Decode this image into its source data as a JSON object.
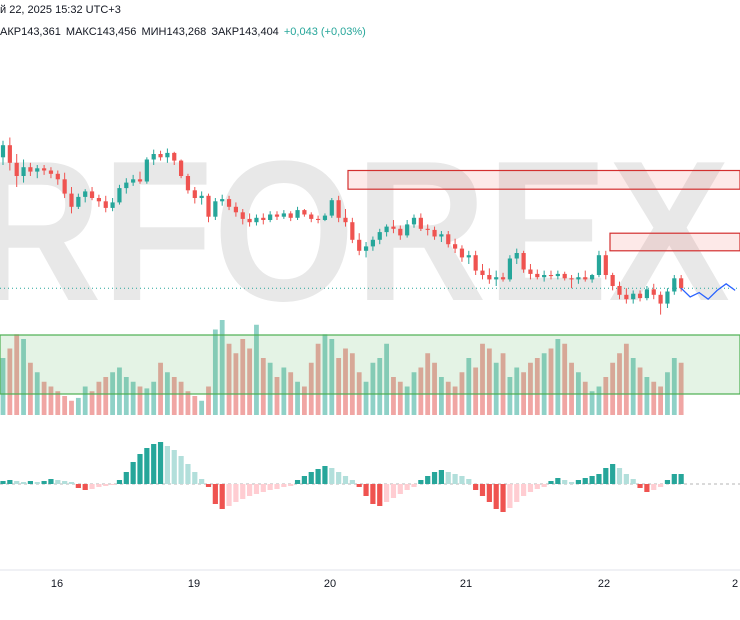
{
  "header": {
    "datetime": "й 22, 2025 15:32 UTC+3",
    "open": "АКР143,361",
    "high": "МАКС143,456",
    "low": "МИН143,268",
    "close": "ЗАКР143,404",
    "change": "+0,043 (+0,03%)"
  },
  "watermark": "RFOREX",
  "colors": {
    "up": "#26a69a",
    "down": "#ef5350",
    "up_light": "#b2dfdb",
    "down_light": "#ffcdd2",
    "resistance": "#d32f2f",
    "support": "#4caf50",
    "forecast": "#2962ff",
    "watermark": "#e6e6e6"
  },
  "chart_data": {
    "type": "candlestick",
    "x_labels": [
      "16",
      "19",
      "20",
      "21",
      "22",
      "2"
    ],
    "price_range": [
      142.9,
      144.9
    ],
    "candles": [
      [
        144.47,
        144.62,
        144.4,
        144.58
      ],
      [
        144.58,
        144.65,
        144.35,
        144.42
      ],
      [
        144.42,
        144.5,
        144.2,
        144.3
      ],
      [
        144.3,
        144.45,
        144.24,
        144.38
      ],
      [
        144.38,
        144.42,
        144.3,
        144.34
      ],
      [
        144.34,
        144.4,
        144.28,
        144.37
      ],
      [
        144.37,
        144.4,
        144.31,
        144.35
      ],
      [
        144.35,
        144.38,
        144.28,
        144.32
      ],
      [
        144.32,
        144.35,
        144.22,
        144.27
      ],
      [
        144.27,
        144.33,
        144.1,
        144.14
      ],
      [
        144.14,
        144.2,
        143.96,
        144.02
      ],
      [
        144.02,
        144.14,
        144.0,
        144.11
      ],
      [
        144.11,
        144.18,
        144.06,
        144.16
      ],
      [
        144.16,
        144.2,
        144.08,
        144.1
      ],
      [
        144.1,
        144.13,
        144.02,
        144.07
      ],
      [
        144.07,
        144.12,
        143.97,
        144.01
      ],
      [
        144.01,
        144.1,
        143.98,
        144.06
      ],
      [
        144.06,
        144.22,
        144.04,
        144.19
      ],
      [
        144.19,
        144.28,
        144.14,
        144.24
      ],
      [
        144.24,
        144.31,
        144.21,
        144.27
      ],
      [
        144.27,
        144.34,
        144.23,
        144.25
      ],
      [
        144.25,
        144.47,
        144.23,
        144.45
      ],
      [
        144.45,
        144.54,
        144.4,
        144.5
      ],
      [
        144.5,
        144.53,
        144.44,
        144.47
      ],
      [
        144.47,
        144.55,
        144.42,
        144.51
      ],
      [
        144.51,
        144.52,
        144.4,
        144.44
      ],
      [
        144.44,
        144.45,
        144.28,
        144.3
      ],
      [
        144.3,
        144.32,
        144.14,
        144.17
      ],
      [
        144.17,
        144.2,
        144.05,
        144.1
      ],
      [
        144.1,
        144.16,
        144.04,
        144.12
      ],
      [
        144.12,
        144.14,
        143.88,
        143.93
      ],
      [
        143.93,
        144.1,
        143.9,
        144.07
      ],
      [
        144.07,
        144.13,
        144.03,
        144.09
      ],
      [
        144.09,
        144.12,
        143.99,
        144.02
      ],
      [
        144.02,
        144.06,
        143.93,
        143.97
      ],
      [
        143.97,
        144.0,
        143.86,
        143.91
      ],
      [
        143.91,
        143.96,
        143.84,
        143.88
      ],
      [
        143.88,
        143.95,
        143.85,
        143.92
      ],
      [
        143.92,
        143.96,
        143.86,
        143.9
      ],
      [
        143.9,
        143.98,
        143.88,
        143.95
      ],
      [
        143.95,
        143.98,
        143.9,
        143.93
      ],
      [
        143.93,
        143.99,
        143.91,
        143.96
      ],
      [
        143.96,
        143.98,
        143.89,
        143.92
      ],
      [
        143.92,
        144.02,
        143.9,
        143.99
      ],
      [
        143.99,
        144.0,
        143.93,
        143.95
      ],
      [
        143.95,
        143.97,
        143.88,
        143.91
      ],
      [
        143.91,
        143.94,
        143.87,
        143.9
      ],
      [
        143.9,
        143.96,
        143.89,
        143.94
      ],
      [
        143.94,
        144.1,
        143.92,
        144.08
      ],
      [
        144.08,
        144.12,
        143.88,
        143.92
      ],
      [
        143.92,
        144.0,
        143.84,
        143.88
      ],
      [
        143.88,
        143.92,
        143.69,
        143.72
      ],
      [
        143.72,
        143.78,
        143.58,
        143.62
      ],
      [
        143.62,
        143.7,
        143.56,
        143.66
      ],
      [
        143.66,
        143.75,
        143.62,
        143.72
      ],
      [
        143.72,
        143.82,
        143.68,
        143.79
      ],
      [
        143.79,
        143.86,
        143.75,
        143.84
      ],
      [
        143.84,
        143.9,
        143.78,
        143.82
      ],
      [
        143.82,
        143.85,
        143.72,
        143.76
      ],
      [
        143.76,
        143.9,
        143.74,
        143.86
      ],
      [
        143.86,
        143.95,
        143.83,
        143.92
      ],
      [
        143.92,
        143.96,
        143.8,
        143.82
      ],
      [
        143.82,
        143.86,
        143.76,
        143.81
      ],
      [
        143.81,
        143.84,
        143.72,
        143.75
      ],
      [
        143.75,
        143.8,
        143.7,
        143.77
      ],
      [
        143.77,
        143.8,
        143.65,
        143.68
      ],
      [
        143.68,
        143.73,
        143.6,
        143.64
      ],
      [
        143.64,
        143.67,
        143.52,
        143.56
      ],
      [
        143.56,
        143.62,
        143.5,
        143.58
      ],
      [
        143.58,
        143.62,
        143.4,
        143.44
      ],
      [
        143.44,
        143.5,
        143.36,
        143.4
      ],
      [
        143.4,
        143.46,
        143.32,
        143.36
      ],
      [
        143.36,
        143.44,
        143.3,
        143.38
      ],
      [
        143.38,
        143.42,
        143.34,
        143.36
      ],
      [
        143.36,
        143.58,
        143.34,
        143.55
      ],
      [
        143.55,
        143.64,
        143.5,
        143.6
      ],
      [
        143.6,
        143.62,
        143.42,
        143.45
      ],
      [
        143.45,
        143.5,
        143.36,
        143.41
      ],
      [
        143.41,
        143.45,
        143.36,
        143.38
      ],
      [
        143.38,
        143.44,
        143.34,
        143.4
      ],
      [
        143.4,
        143.44,
        143.36,
        143.39
      ],
      [
        143.39,
        143.44,
        143.36,
        143.41
      ],
      [
        143.41,
        143.43,
        143.35,
        143.37
      ],
      [
        143.37,
        143.4,
        143.28,
        143.36
      ],
      [
        143.36,
        143.42,
        143.32,
        143.38
      ],
      [
        143.38,
        143.44,
        143.34,
        143.36
      ],
      [
        143.36,
        143.41,
        143.33,
        143.4
      ],
      [
        143.4,
        143.62,
        143.38,
        143.58
      ],
      [
        143.58,
        143.62,
        143.36,
        143.4
      ],
      [
        143.4,
        143.42,
        143.26,
        143.3
      ],
      [
        143.3,
        143.34,
        143.18,
        143.22
      ],
      [
        143.22,
        143.28,
        143.14,
        143.18
      ],
      [
        143.18,
        143.26,
        143.14,
        143.23
      ],
      [
        143.23,
        143.26,
        143.16,
        143.19
      ],
      [
        143.19,
        143.3,
        143.17,
        143.27
      ],
      [
        143.27,
        143.32,
        143.18,
        143.22
      ],
      [
        143.22,
        143.25,
        143.04,
        143.14
      ],
      [
        143.14,
        143.28,
        143.1,
        143.25
      ],
      [
        143.25,
        143.4,
        143.22,
        143.37
      ],
      [
        143.37,
        143.4,
        143.25,
        143.28
      ]
    ],
    "forecast": [
      [
        143.28,
        0
      ],
      [
        143.2,
        1
      ],
      [
        143.24,
        2
      ],
      [
        143.18,
        3
      ],
      [
        143.26,
        4
      ],
      [
        143.32,
        5
      ],
      [
        143.26,
        6
      ]
    ],
    "resistance_zones": [
      [
        144.18,
        144.35
      ],
      [
        143.62,
        143.78
      ]
    ],
    "support_zone_volume": [
      0.2,
      0.8
    ],
    "volume": [
      60,
      70,
      85,
      80,
      55,
      45,
      35,
      30,
      25,
      20,
      15,
      18,
      30,
      25,
      35,
      40,
      45,
      50,
      40,
      35,
      30,
      28,
      35,
      55,
      45,
      40,
      35,
      25,
      20,
      15,
      30,
      90,
      100,
      75,
      65,
      80,
      70,
      95,
      60,
      55,
      40,
      50,
      45,
      35,
      30,
      55,
      75,
      85,
      80,
      60,
      70,
      65,
      45,
      35,
      55,
      60,
      75,
      40,
      35,
      30,
      45,
      50,
      65,
      55,
      40,
      35,
      30,
      45,
      60,
      50,
      75,
      70,
      55,
      65,
      40,
      50,
      45,
      55,
      60,
      65,
      70,
      80,
      75,
      55,
      45,
      35,
      25,
      30,
      40,
      55,
      65,
      75,
      60,
      50,
      40,
      35,
      30,
      45,
      60,
      55
    ],
    "histogram": [
      3,
      4,
      3,
      2,
      3,
      2,
      3,
      5,
      4,
      3,
      2,
      -4,
      -6,
      -5,
      -3,
      -2,
      -1,
      4,
      12,
      22,
      30,
      36,
      40,
      42,
      38,
      34,
      28,
      20,
      12,
      5,
      -3,
      -20,
      -25,
      -22,
      -18,
      -15,
      -12,
      -10,
      -8,
      -6,
      -5,
      -3,
      -2,
      4,
      8,
      12,
      15,
      18,
      16,
      12,
      8,
      4,
      -3,
      -12,
      -20,
      -22,
      -18,
      -14,
      -10,
      -6,
      -3,
      4,
      8,
      12,
      14,
      12,
      10,
      8,
      5,
      -6,
      -12,
      -18,
      -25,
      -28,
      -24,
      -18,
      -12,
      -8,
      -5,
      -3,
      3,
      6,
      4,
      2,
      4,
      6,
      8,
      10,
      16,
      20,
      16,
      10,
      5,
      -4,
      -8,
      -6,
      -3,
      4,
      10,
      10
    ]
  }
}
